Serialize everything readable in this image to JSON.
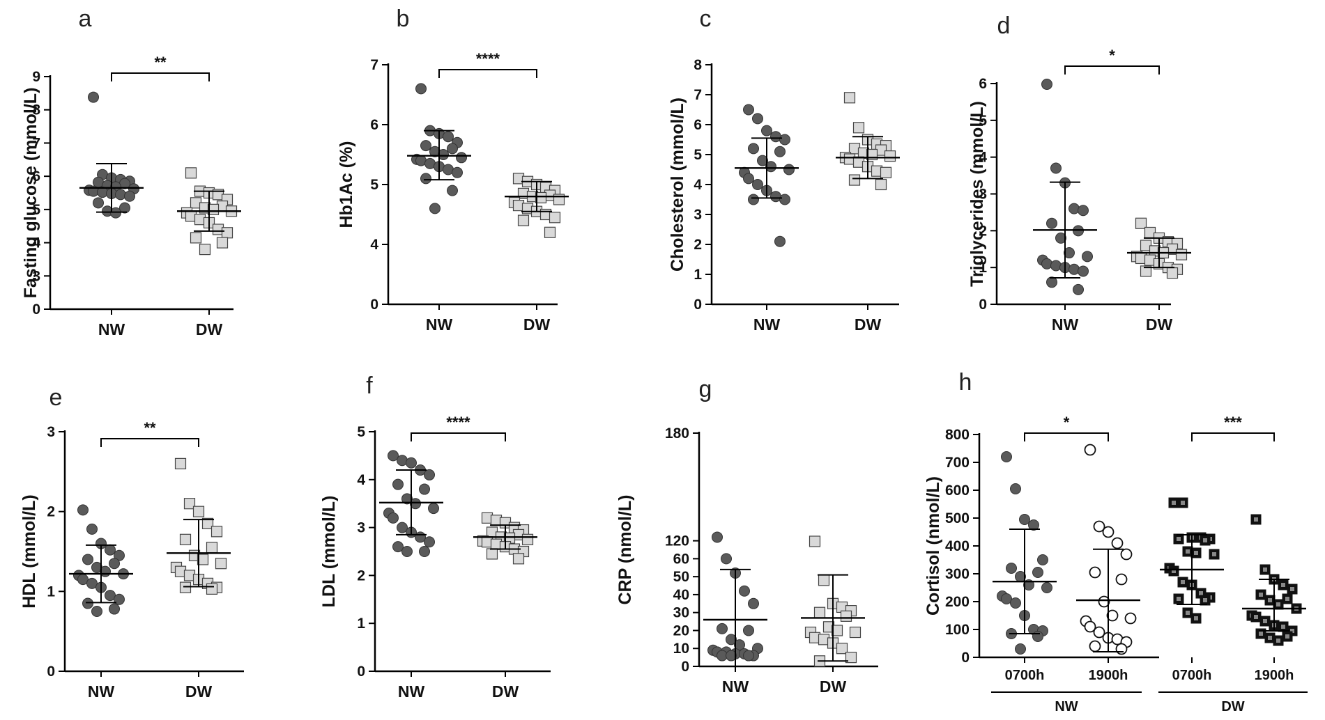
{
  "figure": {
    "colors": {
      "dark": "#5a5a5a",
      "light": "#d9d9d9",
      "black": "#222222",
      "white": "#ffffff",
      "axis": "#000000"
    }
  },
  "chart_data": [
    {
      "panel": "a",
      "type": "scatter",
      "ylabel": "Fasting glucose (mmol/L)",
      "categories": [
        "NW",
        "DW"
      ],
      "yticks": [
        0,
        3,
        4,
        5,
        6,
        7,
        8,
        9
      ],
      "ylim": [
        0,
        9
      ],
      "axis_break": [
        0,
        3
      ],
      "significance": [
        {
          "from": 0,
          "to": 1,
          "label": "**"
        }
      ],
      "groups": [
        {
          "name": "NW",
          "marker": "circle",
          "fill": "dark",
          "mean": 5.65,
          "sd_low": 4.92,
          "sd_high": 6.38,
          "values": [
            8.38,
            6.05,
            5.95,
            5.9,
            5.85,
            5.82,
            5.78,
            5.72,
            5.68,
            5.62,
            5.58,
            5.55,
            5.52,
            5.48,
            5.45,
            5.4,
            5.2,
            5.05,
            4.95,
            4.9
          ]
        },
        {
          "name": "DW",
          "marker": "square",
          "fill": "light",
          "mean": 4.95,
          "sd_low": 4.35,
          "sd_high": 5.55,
          "values": [
            6.1,
            5.55,
            5.5,
            5.45,
            5.3,
            5.2,
            5.1,
            5.05,
            5.0,
            4.95,
            4.9,
            4.8,
            4.7,
            4.6,
            4.4,
            4.3,
            4.15,
            4.0,
            3.8
          ]
        }
      ]
    },
    {
      "panel": "b",
      "type": "scatter",
      "ylabel": "Hb1Ac (%)",
      "categories": [
        "NW",
        "DW"
      ],
      "yticks": [
        0,
        4,
        5,
        6,
        7
      ],
      "ylim": [
        0,
        7
      ],
      "axis_break": [
        0,
        4
      ],
      "significance": [
        {
          "from": 0,
          "to": 1,
          "label": "****"
        }
      ],
      "groups": [
        {
          "name": "NW",
          "marker": "circle",
          "fill": "dark",
          "mean": 5.48,
          "sd_low": 5.08,
          "sd_high": 5.9,
          "values": [
            6.6,
            5.9,
            5.85,
            5.8,
            5.7,
            5.65,
            5.6,
            5.55,
            5.5,
            5.45,
            5.42,
            5.4,
            5.35,
            5.3,
            5.25,
            5.2,
            5.1,
            4.9,
            4.6
          ]
        },
        {
          "name": "DW",
          "marker": "square",
          "fill": "light",
          "mean": 4.8,
          "sd_low": 4.55,
          "sd_high": 5.05,
          "values": [
            5.1,
            5.05,
            5.0,
            4.95,
            4.9,
            4.85,
            4.82,
            4.8,
            4.78,
            4.75,
            4.7,
            4.65,
            4.6,
            4.55,
            4.5,
            4.45,
            4.4,
            4.2
          ]
        }
      ]
    },
    {
      "panel": "c",
      "type": "scatter",
      "ylabel": "Cholesterol (mmol/L)",
      "categories": [
        "NW",
        "DW"
      ],
      "yticks": [
        0,
        1,
        2,
        3,
        4,
        5,
        6,
        7,
        8
      ],
      "ylim": [
        0,
        8
      ],
      "significance": [],
      "groups": [
        {
          "name": "NW",
          "marker": "circle",
          "fill": "dark",
          "mean": 4.55,
          "sd_low": 3.55,
          "sd_high": 5.55,
          "values": [
            6.5,
            6.2,
            5.8,
            5.6,
            5.5,
            5.2,
            5.1,
            4.8,
            4.6,
            4.5,
            4.4,
            4.2,
            4.0,
            3.8,
            3.6,
            3.5,
            3.5,
            2.1
          ]
        },
        {
          "name": "DW",
          "marker": "square",
          "fill": "light",
          "mean": 4.9,
          "sd_low": 4.2,
          "sd_high": 5.6,
          "values": [
            6.9,
            5.9,
            5.5,
            5.35,
            5.3,
            5.2,
            5.15,
            5.05,
            5.0,
            4.95,
            4.9,
            4.85,
            4.75,
            4.6,
            4.45,
            4.4,
            4.15,
            4.0
          ]
        }
      ]
    },
    {
      "panel": "d",
      "type": "scatter",
      "ylabel": "Triglycerides (mmol/L)",
      "categories": [
        "NW",
        "DW"
      ],
      "yticks": [
        0,
        1,
        2,
        3,
        4,
        5,
        6
      ],
      "ylim": [
        0,
        6
      ],
      "significance": [
        {
          "from": 0,
          "to": 1,
          "label": "*"
        }
      ],
      "groups": [
        {
          "name": "NW",
          "marker": "circle",
          "fill": "dark",
          "mean": 2.02,
          "sd_low": 0.72,
          "sd_high": 3.32,
          "values": [
            5.98,
            3.7,
            3.3,
            2.6,
            2.55,
            2.2,
            2.0,
            1.8,
            1.4,
            1.3,
            1.2,
            1.1,
            1.05,
            1.0,
            0.95,
            0.9,
            0.6,
            0.4
          ]
        },
        {
          "name": "DW",
          "marker": "square",
          "fill": "light",
          "mean": 1.4,
          "sd_low": 1.0,
          "sd_high": 1.8,
          "values": [
            2.2,
            1.95,
            1.8,
            1.7,
            1.65,
            1.6,
            1.5,
            1.45,
            1.4,
            1.35,
            1.3,
            1.25,
            1.2,
            1.1,
            1.0,
            0.95,
            0.9,
            0.85
          ]
        }
      ]
    },
    {
      "panel": "e",
      "type": "scatter",
      "ylabel": "HDL (mmol/L)",
      "categories": [
        "NW",
        "DW"
      ],
      "yticks": [
        0,
        1,
        2,
        3
      ],
      "ylim": [
        0,
        3
      ],
      "significance": [
        {
          "from": 0,
          "to": 1,
          "label": "**"
        }
      ],
      "groups": [
        {
          "name": "NW",
          "marker": "circle",
          "fill": "dark",
          "mean": 1.22,
          "sd_low": 0.86,
          "sd_high": 1.58,
          "values": [
            2.02,
            1.78,
            1.6,
            1.52,
            1.45,
            1.4,
            1.35,
            1.3,
            1.25,
            1.22,
            1.2,
            1.15,
            1.1,
            1.05,
            0.95,
            0.9,
            0.85,
            0.78,
            0.75
          ]
        },
        {
          "name": "DW",
          "marker": "square",
          "fill": "light",
          "mean": 1.48,
          "sd_low": 1.06,
          "sd_high": 1.9,
          "values": [
            2.6,
            2.1,
            2.0,
            1.85,
            1.75,
            1.65,
            1.55,
            1.45,
            1.4,
            1.35,
            1.3,
            1.25,
            1.2,
            1.15,
            1.1,
            1.05,
            1.05,
            1.03
          ]
        }
      ]
    },
    {
      "panel": "f",
      "type": "scatter",
      "ylabel": "LDL (mmol/L)",
      "categories": [
        "NW",
        "DW"
      ],
      "yticks": [
        0,
        1,
        2,
        3,
        4,
        5
      ],
      "ylim": [
        0,
        5
      ],
      "significance": [
        {
          "from": 0,
          "to": 1,
          "label": "****"
        }
      ],
      "groups": [
        {
          "name": "NW",
          "marker": "circle",
          "fill": "dark",
          "mean": 3.52,
          "sd_low": 2.85,
          "sd_high": 4.2,
          "values": [
            4.5,
            4.4,
            4.35,
            4.2,
            4.1,
            3.9,
            3.8,
            3.6,
            3.5,
            3.4,
            3.3,
            3.2,
            3.0,
            2.9,
            2.8,
            2.7,
            2.6,
            2.5,
            2.5
          ]
        },
        {
          "name": "DW",
          "marker": "square",
          "fill": "light",
          "mean": 2.8,
          "sd_low": 2.55,
          "sd_high": 3.05,
          "values": [
            3.2,
            3.15,
            3.1,
            3.0,
            2.95,
            2.9,
            2.85,
            2.8,
            2.78,
            2.75,
            2.72,
            2.7,
            2.65,
            2.6,
            2.55,
            2.5,
            2.45,
            2.35
          ]
        }
      ]
    },
    {
      "panel": "g",
      "type": "scatter",
      "ylabel": "CRP (nmol/L)",
      "categories": [
        "NW",
        "DW"
      ],
      "yticks": [
        0,
        10,
        20,
        30,
        40,
        50,
        60,
        120,
        180
      ],
      "ylim": [
        0,
        180
      ],
      "axis_break": [
        60,
        120
      ],
      "significance": [],
      "groups": [
        {
          "name": "NW",
          "marker": "circle",
          "fill": "dark",
          "mean": 26,
          "sd_low": 0,
          "sd_high": 54,
          "values": [
            122,
            60,
            52,
            42,
            35,
            21,
            20,
            15,
            12,
            10,
            9,
            8,
            8,
            7,
            7,
            6,
            6,
            6,
            6
          ]
        },
        {
          "name": "DW",
          "marker": "square",
          "fill": "light",
          "mean": 27,
          "sd_low": 3,
          "sd_high": 51,
          "values": [
            118,
            48,
            35,
            33,
            31,
            30,
            28,
            22,
            20,
            19,
            19,
            16,
            15,
            13,
            10,
            5,
            3
          ]
        }
      ]
    },
    {
      "panel": "h",
      "type": "scatter",
      "ylabel": "Cortisol  (nmol/L)",
      "categories": [
        "0700h",
        "1900h",
        "0700h",
        "1900h"
      ],
      "group_labels": [
        {
          "label": "NW",
          "from": 0,
          "to": 1
        },
        {
          "label": "DW",
          "from": 2,
          "to": 3
        }
      ],
      "yticks": [
        0,
        100,
        200,
        300,
        400,
        500,
        600,
        700,
        800
      ],
      "ylim": [
        0,
        800
      ],
      "significance": [
        {
          "from": 0,
          "to": 1,
          "label": "*"
        },
        {
          "from": 2,
          "to": 3,
          "label": "***"
        }
      ],
      "groups": [
        {
          "name": "NW 0700h",
          "marker": "circle",
          "fill": "dark",
          "mean": 272,
          "sd_low": 85,
          "sd_high": 460,
          "values": [
            720,
            605,
            495,
            475,
            350,
            320,
            305,
            290,
            260,
            250,
            220,
            210,
            195,
            150,
            100,
            95,
            85,
            75,
            30
          ]
        },
        {
          "name": "NW 1900h",
          "marker": "circle",
          "fill": "white",
          "mean": 205,
          "sd_low": 20,
          "sd_high": 388,
          "values": [
            745,
            470,
            450,
            410,
            370,
            305,
            280,
            200,
            150,
            140,
            130,
            110,
            90,
            70,
            65,
            55,
            40,
            30
          ]
        },
        {
          "name": "DW 0700h",
          "marker": "square",
          "fill": "black",
          "mean": 315,
          "sd_low": 190,
          "sd_high": 440,
          "values": [
            555,
            555,
            430,
            430,
            425,
            425,
            420,
            380,
            375,
            370,
            320,
            310,
            270,
            260,
            230,
            215,
            210,
            205,
            160,
            140
          ]
        },
        {
          "name": "DW 1900h",
          "marker": "square",
          "fill": "black",
          "mean": 175,
          "sd_low": 95,
          "sd_high": 280,
          "values": [
            495,
            315,
            280,
            260,
            245,
            225,
            210,
            205,
            190,
            175,
            150,
            145,
            130,
            115,
            110,
            95,
            85,
            75,
            70,
            60
          ]
        }
      ]
    }
  ]
}
